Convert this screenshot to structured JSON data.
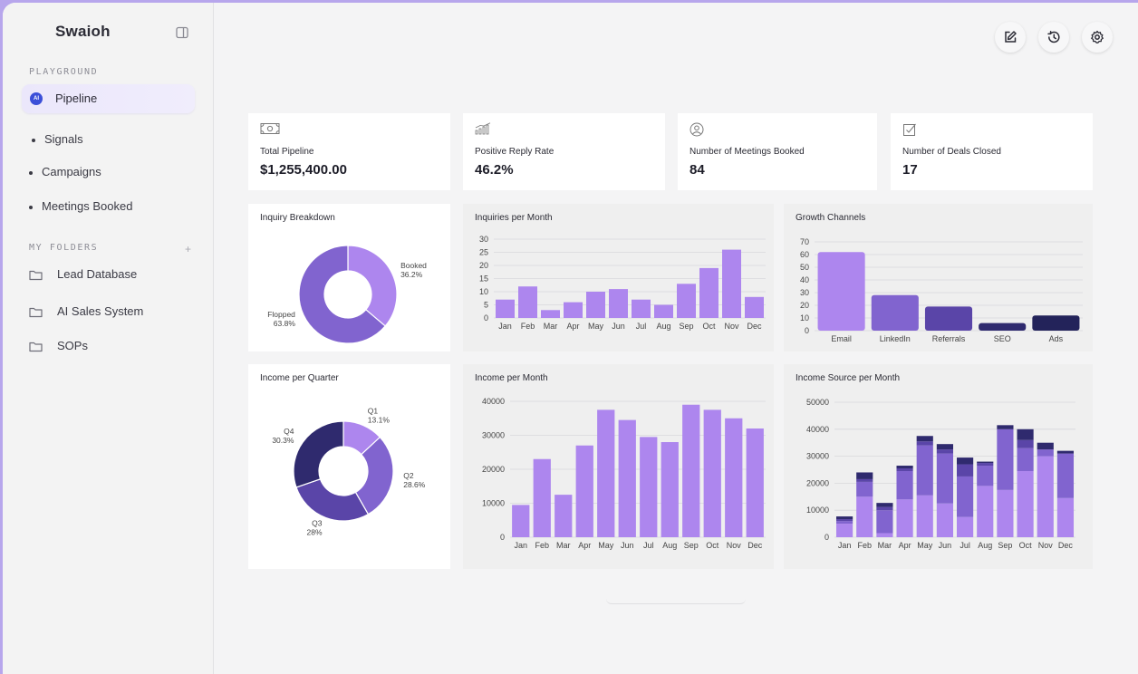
{
  "app": {
    "title": "Swaioh"
  },
  "sidebar": {
    "section_playground": "PLAYGROUND",
    "active_item": {
      "label": "Pipeline",
      "badge": "AI"
    },
    "items": [
      {
        "label": "Signals"
      },
      {
        "label": "Campaigns"
      },
      {
        "label": "Meetings Booked"
      }
    ],
    "section_folders": "MY FOLDERS",
    "add_folder": "+",
    "folders": [
      {
        "label": "Lead Database"
      },
      {
        "label": "AI Sales System"
      },
      {
        "label": "SOPs"
      }
    ]
  },
  "toolbar": {
    "icons": [
      "edit-icon",
      "history-icon",
      "settings-icon"
    ]
  },
  "kpis": [
    {
      "label": "Total Pipeline",
      "value": "$1,255,400.00",
      "icon": "money-icon"
    },
    {
      "label": "Positive Reply Rate",
      "value": "46.2%",
      "icon": "bar-chart-icon"
    },
    {
      "label": "Number of Meetings Booked",
      "value": "84",
      "icon": "user-icon"
    },
    {
      "label": "Number of Deals Closed",
      "value": "17",
      "icon": "checkbox-icon"
    }
  ],
  "colors": {
    "light": "#ad86ee",
    "mid": "#8164cf",
    "deep": "#5a45a8",
    "dark": "#2f2a6e",
    "navy": "#23235a"
  },
  "chart_data": [
    {
      "id": "inquiry-breakdown",
      "type": "pie",
      "title": "Inquiry Breakdown",
      "slices": [
        {
          "label": "Booked",
          "pct_label": "36.2%",
          "value": 36.2,
          "color": "#ad86ee"
        },
        {
          "label": "Flopped",
          "pct_label": "63.8%",
          "value": 63.8,
          "color": "#8164cf"
        }
      ]
    },
    {
      "id": "inquiries-per-month",
      "type": "bar",
      "title": "Inquiries per Month",
      "categories": [
        "Jan",
        "Feb",
        "Mar",
        "Apr",
        "May",
        "Jun",
        "Jul",
        "Aug",
        "Sep",
        "Oct",
        "Nov",
        "Dec"
      ],
      "values": [
        7,
        12,
        3,
        6,
        10,
        11,
        7,
        5,
        13,
        19,
        26,
        8
      ],
      "yticks": [
        0,
        5,
        10,
        15,
        20,
        25,
        30
      ],
      "ylim": [
        0,
        30
      ]
    },
    {
      "id": "growth-channels",
      "type": "bar",
      "title": "Growth Channels",
      "categories": [
        "Email",
        "LinkedIn",
        "Referrals",
        "SEO",
        "Ads"
      ],
      "values": [
        62,
        28,
        19,
        6,
        12
      ],
      "bar_colors": [
        "#ad86ee",
        "#8164cf",
        "#5a45a8",
        "#2f2a6e",
        "#23235a"
      ],
      "yticks": [
        0,
        10,
        20,
        30,
        40,
        50,
        60,
        70
      ],
      "ylim": [
        0,
        70
      ]
    },
    {
      "id": "income-per-quarter",
      "type": "pie",
      "title": "Income per Quarter",
      "slices": [
        {
          "label": "Q1",
          "pct_label": "13.1%",
          "value": 13.1,
          "color": "#ad86ee"
        },
        {
          "label": "Q2",
          "pct_label": "28.6%",
          "value": 28.6,
          "color": "#8164cf"
        },
        {
          "label": "Q3",
          "pct_label": "28%",
          "value": 28,
          "color": "#5a45a8"
        },
        {
          "label": "Q4",
          "pct_label": "30.3%",
          "value": 30.3,
          "color": "#2f2a6e"
        }
      ]
    },
    {
      "id": "income-per-month",
      "type": "bar",
      "title": "Income per Month",
      "categories": [
        "Jan",
        "Feb",
        "Mar",
        "Apr",
        "May",
        "Jun",
        "Jul",
        "Aug",
        "Sep",
        "Oct",
        "Nov",
        "Dec"
      ],
      "values": [
        9500,
        23000,
        12500,
        27000,
        37500,
        34500,
        29500,
        28000,
        39000,
        37500,
        35000,
        32000
      ],
      "yticks": [
        0,
        10000,
        20000,
        30000,
        40000
      ],
      "ylim": [
        0,
        40000
      ]
    },
    {
      "id": "income-source-per-month",
      "type": "bar",
      "title": "Income Source per Month",
      "categories": [
        "Jan",
        "Feb",
        "Mar",
        "Apr",
        "May",
        "Jun",
        "Jul",
        "Aug",
        "Sep",
        "Oct",
        "Nov",
        "Dec"
      ],
      "series": [
        {
          "values": [
            5000,
            15000,
            1500,
            14000,
            15500,
            12500,
            7500,
            19000,
            17500,
            24500,
            30000,
            14500
          ],
          "color": "#ad86ee"
        },
        {
          "values": [
            1000,
            5500,
            8500,
            10500,
            18500,
            18500,
            15000,
            7500,
            22500,
            8500,
            2500,
            16500
          ],
          "color": "#8164cf"
        },
        {
          "values": [
            700,
            1000,
            1200,
            1000,
            1500,
            1500,
            4500,
            1000,
            0,
            3000,
            0,
            0
          ],
          "color": "#5a45a8"
        },
        {
          "values": [
            1000,
            2500,
            1500,
            1000,
            2000,
            2000,
            2500,
            500,
            1500,
            4000,
            2500,
            1000
          ],
          "color": "#2f2a6e"
        }
      ],
      "yticks": [
        0,
        10000,
        20000,
        30000,
        40000,
        50000
      ],
      "ylim": [
        0,
        50000
      ]
    }
  ]
}
